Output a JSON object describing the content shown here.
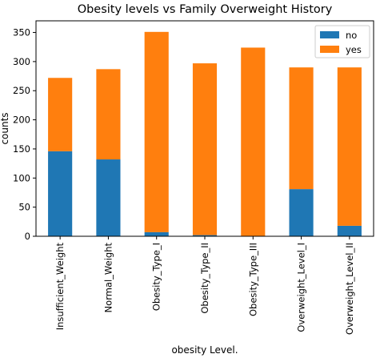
{
  "chart_data": {
    "type": "bar",
    "stacked": true,
    "title": "Obesity levels vs Family Overweight History",
    "xlabel": "obesity Level.",
    "ylabel": "counts",
    "ylim": [
      0,
      370
    ],
    "yticks": [
      0,
      50,
      100,
      150,
      200,
      250,
      300,
      350
    ],
    "grid": false,
    "legend_position": "top-right",
    "categories": [
      "Insufficient_Weight",
      "Normal_Weight",
      "Obesity_Type_I",
      "Obesity_Type_II",
      "Obesity_Type_III",
      "Overweight_Level_I",
      "Overweight_Level_II"
    ],
    "series": [
      {
        "name": "no",
        "color": "#1f77b4",
        "values": [
          146,
          132,
          7,
          2,
          0,
          81,
          18
        ]
      },
      {
        "name": "yes",
        "color": "#ff7f0e",
        "values": [
          126,
          155,
          344,
          295,
          324,
          209,
          272
        ]
      }
    ]
  }
}
